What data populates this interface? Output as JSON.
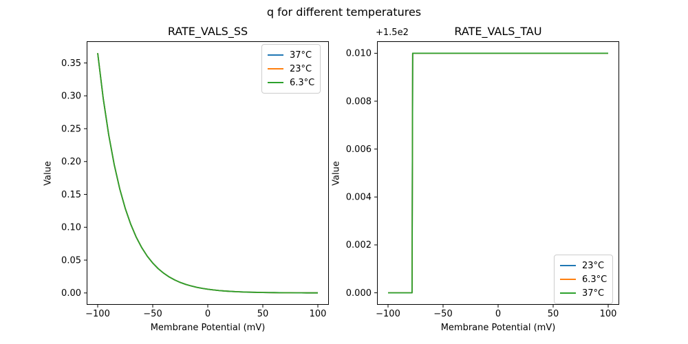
{
  "figure": {
    "suptitle": "q for different temperatures",
    "background_color": "#ffffff",
    "axis_color": "#000000"
  },
  "chart_data": [
    {
      "type": "line",
      "title": "RATE_VALS_SS",
      "xlabel": "Membrane Potential (mV)",
      "ylabel": "Value",
      "xlim": [
        -110,
        110
      ],
      "ylim": [
        -0.018,
        0.383
      ],
      "grid": false,
      "xticks": {
        "values": [
          -100,
          -50,
          0,
          50,
          100
        ],
        "labels": [
          "−100",
          "−50",
          "0",
          "50",
          "100"
        ]
      },
      "yticks": {
        "values": [
          0.0,
          0.05,
          0.1,
          0.15,
          0.2,
          0.25,
          0.3,
          0.35
        ],
        "labels": [
          "0.00",
          "0.05",
          "0.10",
          "0.15",
          "0.20",
          "0.25",
          "0.30",
          "0.35"
        ]
      },
      "x": [
        -100,
        -95,
        -90,
        -85,
        -80,
        -75,
        -70,
        -65,
        -60,
        -55,
        -50,
        -45,
        -40,
        -35,
        -30,
        -25,
        -20,
        -15,
        -10,
        -5,
        0,
        5,
        10,
        15,
        20,
        25,
        30,
        35,
        40,
        45,
        50,
        55,
        60,
        65,
        70,
        75,
        80,
        85,
        90,
        95,
        100
      ],
      "y_shared": [
        0.365,
        0.2963,
        0.2406,
        0.1954,
        0.1586,
        0.1288,
        0.1046,
        0.0849,
        0.069,
        0.056,
        0.0455,
        0.0369,
        0.03,
        0.0243,
        0.0198,
        0.016,
        0.013,
        0.0106,
        0.0086,
        0.007,
        0.0057,
        0.0046,
        0.0037,
        0.003,
        0.0025,
        0.002,
        0.0016,
        0.0013,
        0.0011,
        0.0009,
        0.0007,
        0.0006,
        0.0005,
        0.0004,
        0.0003,
        0.0003,
        0.0002,
        0.0002,
        0.0001,
        0.0001,
        0.0001
      ],
      "series": [
        {
          "name": "37°C",
          "color": "#1f77b4"
        },
        {
          "name": "23°C",
          "color": "#ff7f0e"
        },
        {
          "name": "6.3°C",
          "color": "#2ca02c"
        }
      ],
      "note": "All three temperature curves coincide exactly; only the last-drawn green curve is visible.",
      "legend": {
        "position": "upper right",
        "entries": [
          {
            "label": "37°C",
            "color": "#1f77b4"
          },
          {
            "label": "23°C",
            "color": "#ff7f0e"
          },
          {
            "label": "6.3°C",
            "color": "#2ca02c"
          }
        ]
      }
    },
    {
      "type": "line",
      "title": "RATE_VALS_TAU",
      "offset_text": "+1.5e2",
      "xlabel": "Membrane Potential (mV)",
      "ylabel": "Value",
      "xlim": [
        -110,
        110
      ],
      "ylim": [
        149.9995,
        150.0105
      ],
      "grid": false,
      "xticks": {
        "values": [
          -100,
          -50,
          0,
          50,
          100
        ],
        "labels": [
          "−100",
          "−50",
          "0",
          "50",
          "100"
        ]
      },
      "yticks": {
        "values": [
          150.0,
          150.002,
          150.004,
          150.006,
          150.008,
          150.01
        ],
        "labels": [
          "0.000",
          "0.002",
          "0.004",
          "0.006",
          "0.008",
          "0.010"
        ]
      },
      "points_shared": [
        [
          -100,
          150.0
        ],
        [
          -78.2,
          150.0
        ],
        [
          -77.6,
          150.01
        ],
        [
          100,
          150.01
        ]
      ],
      "series": [
        {
          "name": "23°C",
          "color": "#1f77b4"
        },
        {
          "name": "6.3°C",
          "color": "#ff7f0e"
        },
        {
          "name": "37°C",
          "color": "#2ca02c"
        }
      ],
      "note": "Step function: value 150.000 below about −78 mV, 150.010 above; all three curves coincide, green visible.",
      "legend": {
        "position": "lower right",
        "entries": [
          {
            "label": "23°C",
            "color": "#1f77b4"
          },
          {
            "label": "6.3°C",
            "color": "#ff7f0e"
          },
          {
            "label": "37°C",
            "color": "#2ca02c"
          }
        ]
      }
    }
  ]
}
